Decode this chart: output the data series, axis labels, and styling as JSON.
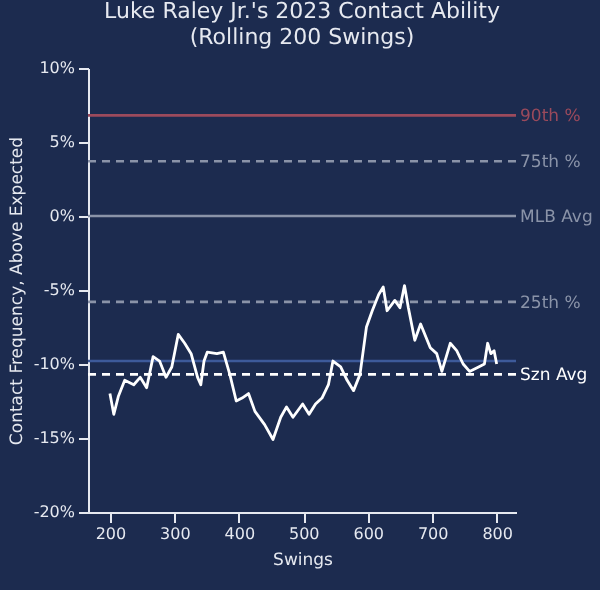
{
  "chart_data": {
    "type": "line",
    "title": "Luke Raley Jr.'s 2023 Contact Ability",
    "subtitle": "(Rolling 200 Swings)",
    "xlabel": "Swings",
    "ylabel": "Contact Frequency, Above Expected",
    "x": [
      200,
      206,
      213,
      223,
      237,
      247,
      257,
      267,
      277,
      287,
      296,
      306,
      316,
      326,
      336,
      341,
      346,
      351,
      366,
      376,
      386,
      396,
      405,
      415,
      425,
      440,
      453,
      465,
      474,
      484,
      499,
      509,
      519,
      529,
      539,
      546,
      558,
      568,
      578,
      588,
      598,
      607,
      617,
      624,
      630,
      642,
      650,
      657,
      663,
      673,
      682,
      697,
      707,
      715,
      728,
      738,
      748,
      758,
      772,
      781,
      786,
      791,
      796,
      800
    ],
    "series": [
      {
        "color": "#ffffff",
        "values": [
          -12.0,
          -13.4,
          -12.2,
          -11.1,
          -11.4,
          -10.9,
          -11.6,
          -9.5,
          -9.8,
          -10.9,
          -10.2,
          -8.0,
          -8.6,
          -9.3,
          -10.9,
          -11.4,
          -9.8,
          -9.2,
          -9.3,
          -9.2,
          -10.7,
          -12.5,
          -12.3,
          -12.0,
          -13.2,
          -14.1,
          -15.1,
          -13.6,
          -12.9,
          -13.6,
          -12.7,
          -13.4,
          -12.7,
          -12.3,
          -11.4,
          -9.8,
          -10.2,
          -11.1,
          -11.8,
          -10.7,
          -7.5,
          -6.4,
          -5.3,
          -4.8,
          -6.4,
          -5.7,
          -6.2,
          -4.7,
          -6.2,
          -8.4,
          -7.3,
          -8.9,
          -9.3,
          -10.5,
          -8.6,
          -9.1,
          -10.0,
          -10.5,
          -10.2,
          -10.0,
          -8.6,
          -9.3,
          -9.1,
          -10.0
        ]
      }
    ],
    "xlim": [
      166,
      830
    ],
    "xticks": [
      200,
      300,
      400,
      500,
      600,
      700,
      800
    ],
    "ylim": [
      -20,
      10
    ],
    "yticks": [
      {
        "value": -20,
        "label": "-20%"
      },
      {
        "value": -15,
        "label": "-15%"
      },
      {
        "value": -10,
        "label": "-10%"
      },
      {
        "value": -5,
        "label": "-5%"
      },
      {
        "value": 0,
        "label": "0%"
      },
      {
        "value": 5,
        "label": "5%"
      },
      {
        "value": 10,
        "label": "10%"
      }
    ],
    "grid": false,
    "ref_lines": [
      {
        "axis": "y",
        "value": 6.8,
        "label": "90th %",
        "color": "#9b4a5c",
        "line_style": "solid"
      },
      {
        "axis": "y",
        "value": 3.7,
        "label": "75th %",
        "color": "#8a93a8",
        "line_style": "dashed"
      },
      {
        "axis": "y",
        "value": 0,
        "label": "MLB Avg",
        "color": "#8a93a8",
        "line_style": "solid"
      },
      {
        "axis": "y",
        "value": -5.8,
        "label": "25th %",
        "color": "#8a93a8",
        "line_style": "dashed"
      },
      {
        "axis": "y",
        "value": -9.8,
        "color": "#3d5a9a",
        "line_style": "solid"
      },
      {
        "axis": "y",
        "value": -10.7,
        "label": "Szn Avg",
        "color": "#ffffff",
        "line_style": "dashed"
      }
    ]
  }
}
